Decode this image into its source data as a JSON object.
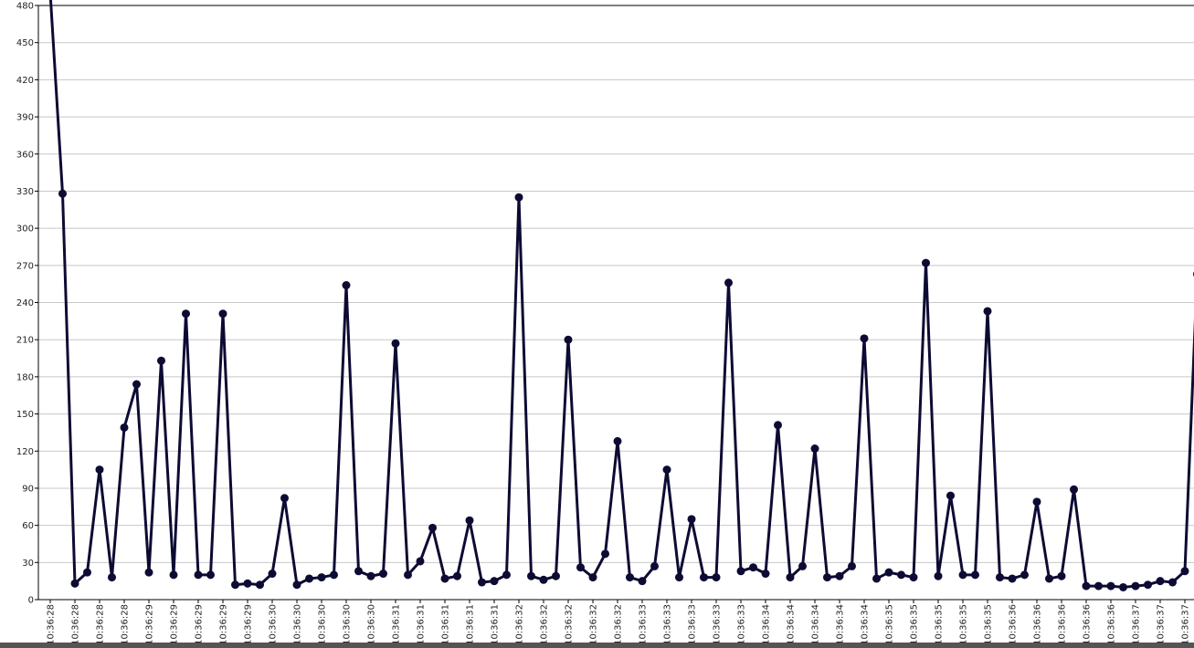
{
  "chart_data": {
    "type": "line",
    "categories": [
      "10:36:28",
      null,
      "10:36:28",
      null,
      "10:36:28",
      null,
      "10:36:28",
      null,
      "10:36:29",
      null,
      "10:36:29",
      null,
      "10:36:29",
      null,
      "10:36:29",
      null,
      "10:36:29",
      null,
      "10:36:30",
      null,
      "10:36:30",
      null,
      "10:36:30",
      null,
      "10:36:30",
      null,
      "10:36:30",
      null,
      "10:36:31",
      null,
      "10:36:31",
      null,
      "10:36:31",
      null,
      "10:36:31",
      null,
      "10:36:31",
      null,
      "10:36:32",
      null,
      "10:36:32",
      null,
      "10:36:32",
      null,
      "10:36:32",
      null,
      "10:36:32",
      null,
      "10:36:33",
      null,
      "10:36:33",
      null,
      "10:36:33",
      null,
      "10:36:33",
      null,
      "10:36:33",
      null,
      "10:36:34",
      null,
      "10:36:34",
      null,
      "10:36:34",
      null,
      "10:36:34",
      null,
      "10:36:34",
      null,
      "10:36:35",
      null,
      "10:36:35",
      null,
      "10:36:35",
      null,
      "10:36:35",
      null,
      "10:36:35",
      null,
      "10:36:36",
      null,
      "10:36:36",
      null,
      "10:36:36",
      null,
      "10:36:36",
      null,
      "10:36:36",
      null,
      "10:36:37",
      null,
      "10:36:37",
      null,
      "10:36:37",
      null
    ],
    "series": [
      {
        "color": "#0d0b33",
        "values": [
          490,
          328,
          13,
          22,
          105,
          18,
          139,
          174,
          22,
          193,
          20,
          231,
          20,
          20,
          231,
          12,
          13,
          12,
          21,
          82,
          12,
          17,
          18,
          20,
          254,
          23,
          19,
          21,
          207,
          20,
          31,
          58,
          17,
          19,
          64,
          14,
          15,
          20,
          325,
          19,
          16,
          19,
          210,
          26,
          18,
          37,
          128,
          18,
          15,
          27,
          105,
          18,
          65,
          18,
          18,
          256,
          23,
          26,
          21,
          141,
          18,
          27,
          122,
          18,
          19,
          27,
          211,
          17,
          22,
          20,
          18,
          272,
          19,
          84,
          20,
          20,
          233,
          18,
          17,
          20,
          79,
          17,
          19,
          89,
          11,
          11,
          11,
          10,
          11,
          12,
          15,
          14,
          23,
          263
        ]
      }
    ],
    "ylim": [
      0,
      480
    ],
    "yticks": [
      0,
      30,
      60,
      90,
      120,
      150,
      180,
      210,
      240,
      270,
      300,
      330,
      360,
      390,
      420,
      450,
      480
    ],
    "grid": true
  }
}
